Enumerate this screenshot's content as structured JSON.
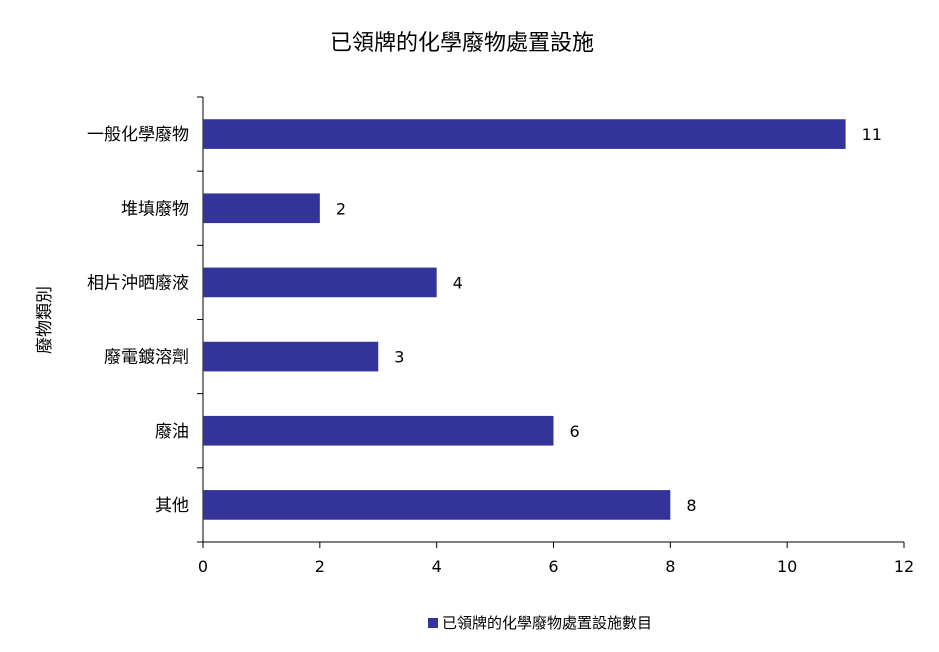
{
  "chart_data": {
    "type": "bar",
    "orientation": "horizontal",
    "title": "已領牌的化學廢物處置設施",
    "xlabel": "",
    "ylabel": "廢物類別",
    "categories": [
      "一般化學廢物",
      "堆填廢物",
      "相片沖晒廢液",
      "廢電鍍溶劑",
      "廢油",
      "其他"
    ],
    "series": [
      {
        "name": "已領牌的化學廢物處置設施數目",
        "values": [
          11,
          2,
          4,
          3,
          6,
          8
        ],
        "color": "#333399"
      }
    ],
    "xlim": [
      0,
      12
    ],
    "xticks": [
      0,
      2,
      4,
      6,
      8,
      10,
      12
    ],
    "grid": false,
    "legend_position": "bottom",
    "data_labels": true
  }
}
